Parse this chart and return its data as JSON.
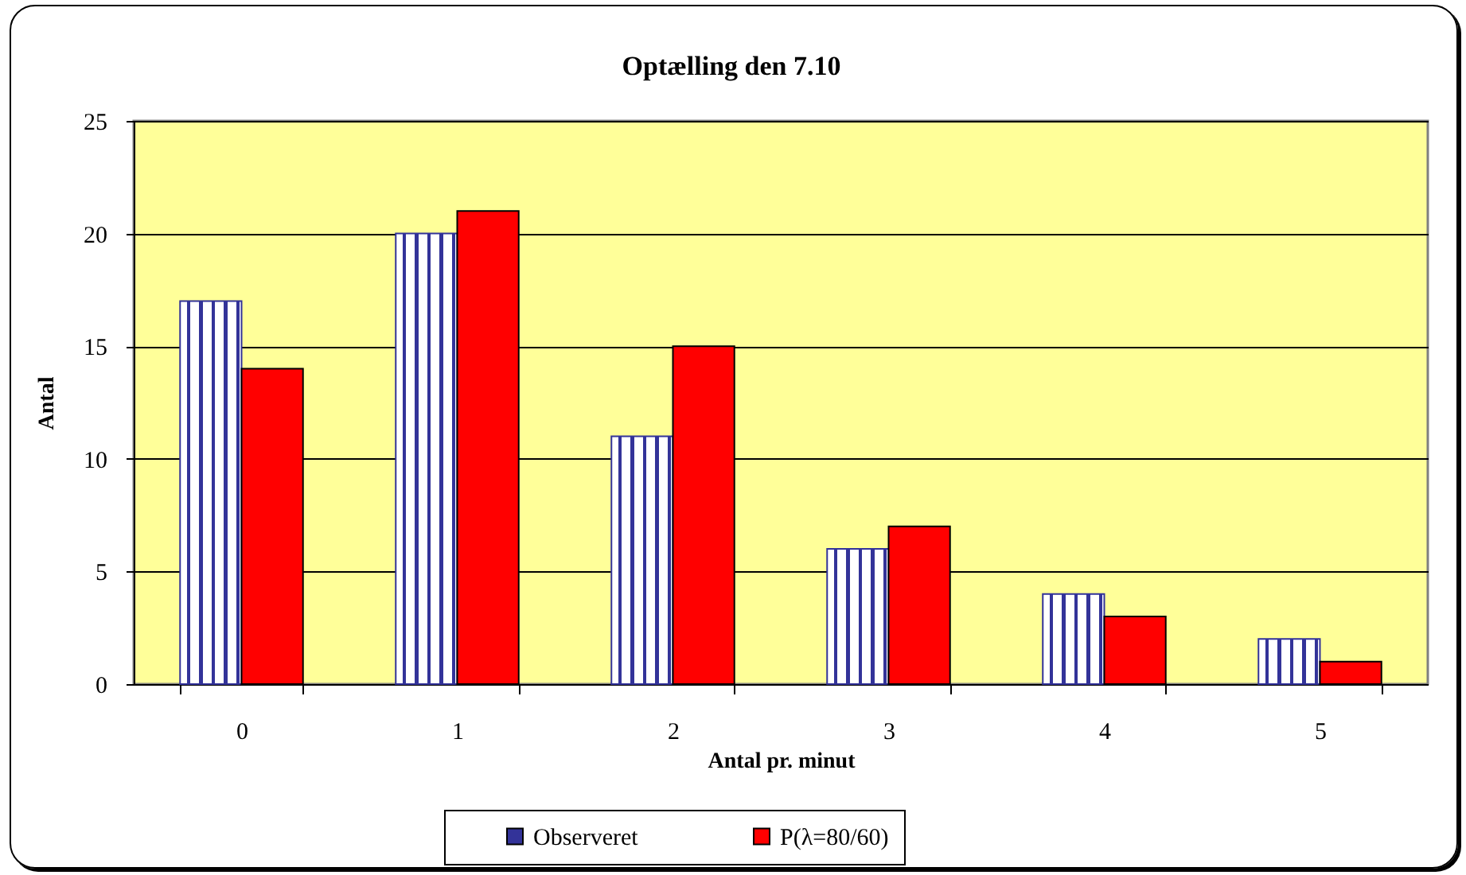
{
  "chart_data": {
    "type": "bar",
    "title": "Optælling den 7.10",
    "xlabel": "Antal pr. minut",
    "ylabel": "Antal",
    "categories": [
      "0",
      "1",
      "2",
      "3",
      "4",
      "5"
    ],
    "series": [
      {
        "name": "Observeret",
        "color": "#333399",
        "values": [
          17,
          20,
          11,
          6,
          4,
          2
        ]
      },
      {
        "name": "P(λ=80/60)",
        "color": "#ff0000",
        "values": [
          14,
          21,
          15,
          7,
          3,
          1
        ]
      }
    ],
    "ylim": [
      0,
      25
    ],
    "yticks": [
      0,
      5,
      10,
      15,
      20,
      25
    ],
    "grid": "y",
    "legend": "bottom"
  }
}
